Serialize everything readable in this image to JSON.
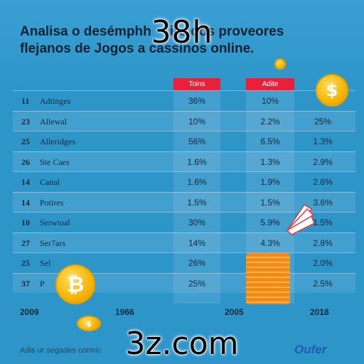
{
  "overlay_top": "38h",
  "overlay_bottom": "3z.com",
  "title_line1": "Analisa o desémphh",
  "title_line1b": "iro dos proveores",
  "title_line2": "flejanos de Jogos a cassinos online.",
  "columns": [
    "Toins",
    "Adite"
  ],
  "rows": [
    {
      "num": "11",
      "name": "Adtinges",
      "v1": "36%",
      "v2": "10%",
      "v3": ""
    },
    {
      "num": "23",
      "name": "Allewal",
      "v1": "10%",
      "v2": "2.2%",
      "v3": "25%"
    },
    {
      "num": "25",
      "name": "Alleridges",
      "v1": "56%",
      "v2": "6.5%",
      "v3": "1.3%"
    },
    {
      "num": "26",
      "name": "Ste Caes",
      "v1": "1.6%",
      "v2": "1.3%",
      "v3": "2.9%"
    },
    {
      "num": "14",
      "name": "Canal",
      "v1": "1.6%",
      "v2": "1.9%",
      "v3": "2.6%"
    },
    {
      "num": "14",
      "name": "Potires",
      "v1": "1.5%",
      "v2": "1.5%",
      "v3": "3.6%"
    },
    {
      "num": "10",
      "name": "Serwioal",
      "v1": "30%",
      "v2": "5.9%",
      "v3": "1.5%"
    },
    {
      "num": "27",
      "name": "Ser7ars",
      "v1": "14%",
      "v2": "4.3%",
      "v3": "2.8%"
    },
    {
      "num": "25",
      "name": "Sel",
      "v1": "26%",
      "v2": "",
      "v3": "2.0%"
    },
    {
      "num": "37",
      "name": "P",
      "v1": "25%",
      "v2": "",
      "v3": "2.5%"
    }
  ],
  "years": [
    "2009",
    "1966",
    "2005",
    "2018"
  ],
  "footer": "Adis ur segades cormic",
  "brand": "Oufer",
  "coin_symbols": [
    "$",
    "₿",
    "$"
  ]
}
